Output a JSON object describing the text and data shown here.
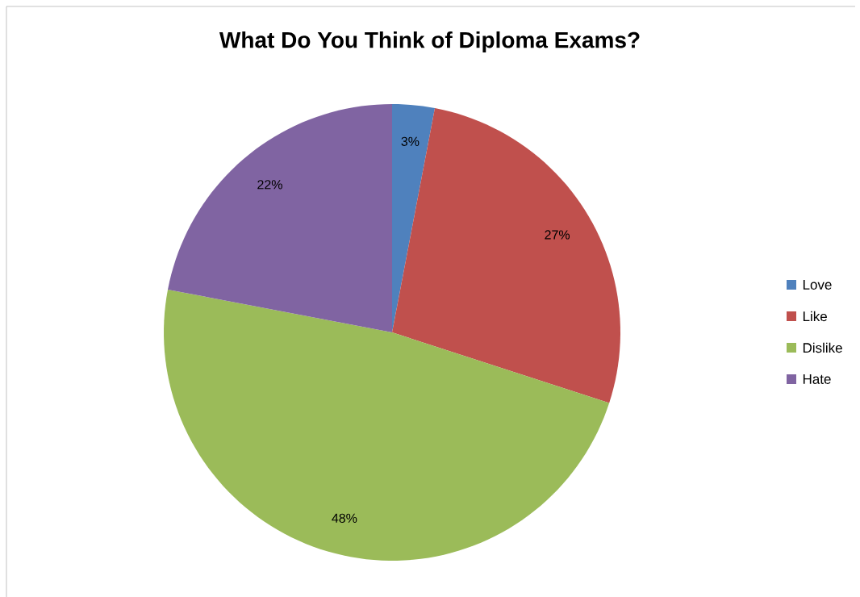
{
  "chart_data": {
    "type": "pie",
    "title": "What Do You Think of Diploma Exams?",
    "categories": [
      "Love",
      "Like",
      "Dislike",
      "Hate"
    ],
    "values": [
      3,
      27,
      48,
      22
    ],
    "value_labels": [
      "3%",
      "27%",
      "48%",
      "22%"
    ],
    "colors": [
      "#4f81bd",
      "#c0504d",
      "#9bbb59",
      "#8064a2"
    ],
    "legend": "right"
  }
}
